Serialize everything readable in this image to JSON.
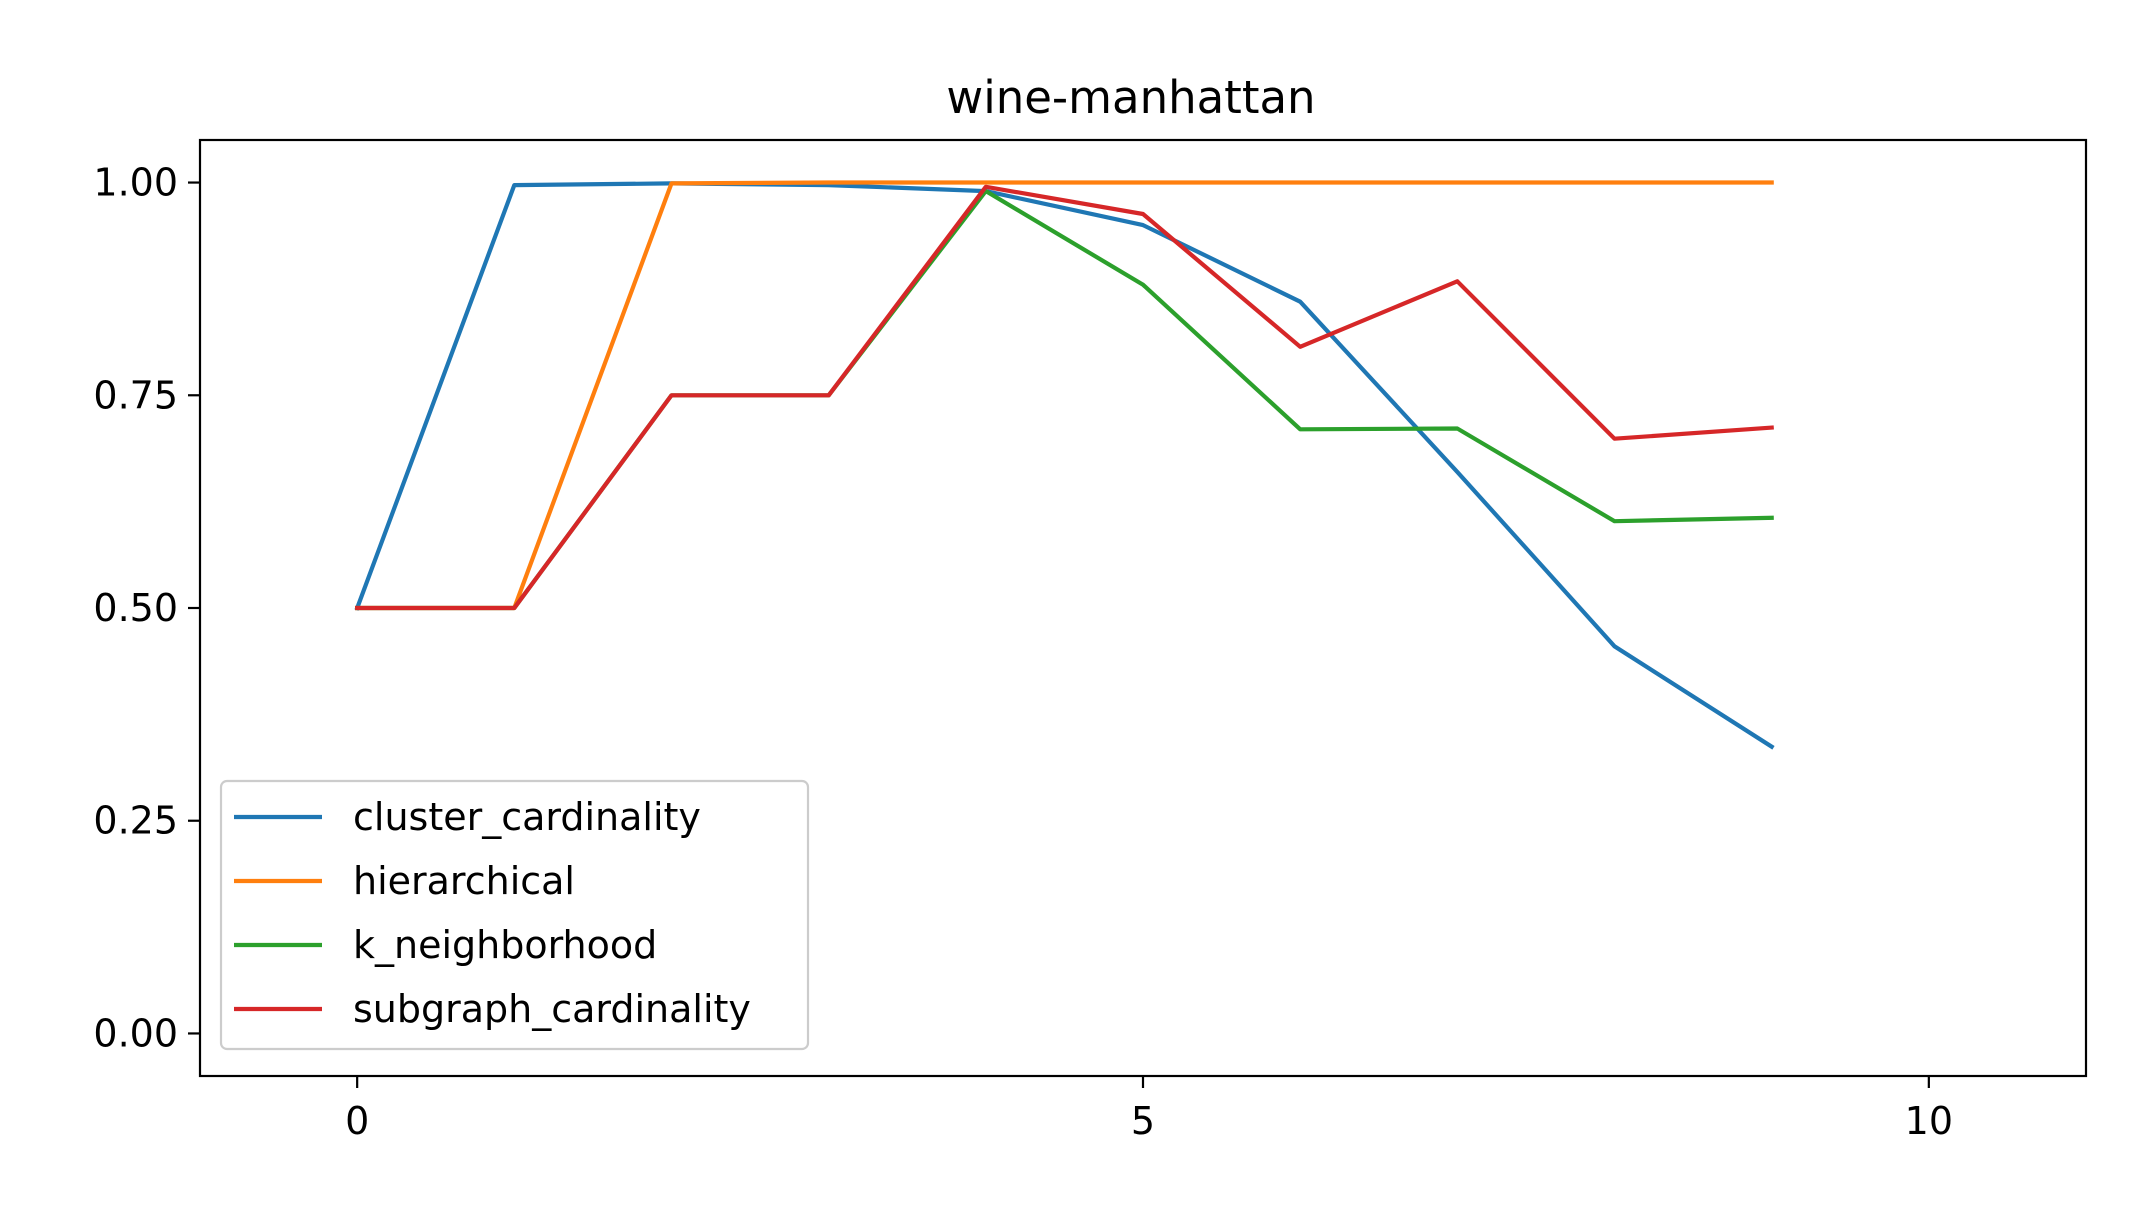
{
  "chart_data": {
    "type": "line",
    "title": "wine-manhattan",
    "xlabel": "",
    "ylabel": "",
    "x": [
      0,
      1,
      2,
      3,
      4,
      5,
      6,
      7,
      8,
      9
    ],
    "xlim": [
      -1,
      11
    ],
    "ylim": [
      -0.05,
      1.05
    ],
    "xticks": [
      0,
      5,
      10
    ],
    "xtick_labels": [
      "0",
      "5",
      "10"
    ],
    "yticks": [
      0.0,
      0.25,
      0.5,
      0.75,
      1.0
    ],
    "ytick_labels": [
      "0.00",
      "0.25",
      "0.50",
      "0.75",
      "1.00"
    ],
    "grid": false,
    "legend_position": "lower-left",
    "series": [
      {
        "name": "cluster_cardinality",
        "color": "#1f77b4",
        "values": [
          0.5,
          0.997,
          0.999,
          0.997,
          0.99,
          0.95,
          0.86,
          0.66,
          0.455,
          0.337
        ]
      },
      {
        "name": "hierarchical",
        "color": "#ff7f0e",
        "values": [
          0.5,
          0.5,
          0.999,
          1.0,
          1.0,
          1.0,
          1.0,
          1.0,
          1.0,
          1.0
        ]
      },
      {
        "name": "k_neighborhood",
        "color": "#2ca02c",
        "values": [
          0.5,
          0.5,
          0.75,
          0.75,
          0.99,
          0.88,
          0.71,
          0.711,
          0.602,
          0.606
        ]
      },
      {
        "name": "subgraph_cardinality",
        "color": "#d62728",
        "values": [
          0.5,
          0.5,
          0.75,
          0.75,
          0.995,
          0.963,
          0.807,
          0.884,
          0.699,
          0.712
        ]
      }
    ]
  }
}
